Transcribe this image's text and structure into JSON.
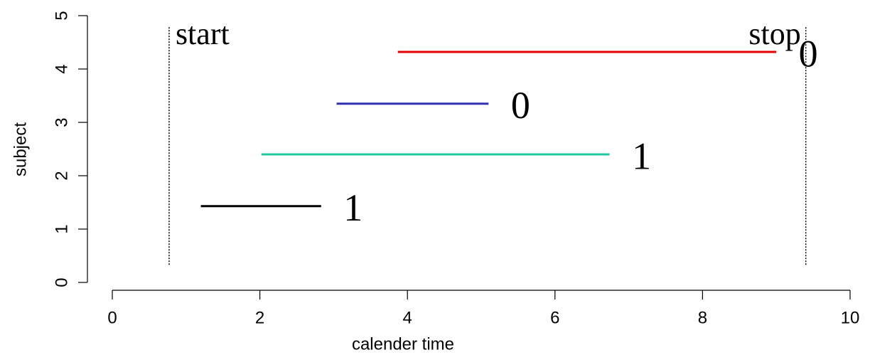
{
  "chart_data": {
    "type": "segments",
    "xlabel": "calender time",
    "ylabel": "subject",
    "xlim": [
      -0.4,
      10.4
    ],
    "ylim": [
      -0.2,
      5.2
    ],
    "xticks": [
      0,
      2,
      4,
      6,
      8,
      10
    ],
    "yticks": [
      0,
      1,
      2,
      3,
      4,
      5
    ],
    "segments": [
      {
        "start": 1.2,
        "stop": 2.83,
        "y": 1.43,
        "status": 1,
        "color": "#000000"
      },
      {
        "start": 2.02,
        "stop": 6.74,
        "y": 2.4,
        "status": 1,
        "color": "#20c8a0"
      },
      {
        "start": 3.04,
        "stop": 5.1,
        "y": 3.35,
        "status": 0,
        "color": "#3030b0"
      },
      {
        "start": 3.87,
        "stop": 9.0,
        "y": 4.32,
        "status": 0,
        "color": "#e00000"
      }
    ],
    "reference_span": [
      0.33,
      4.8
    ],
    "reference_lines": [
      {
        "x": 0.77,
        "label": "start"
      },
      {
        "x": 9.4,
        "label": "stop"
      }
    ]
  }
}
